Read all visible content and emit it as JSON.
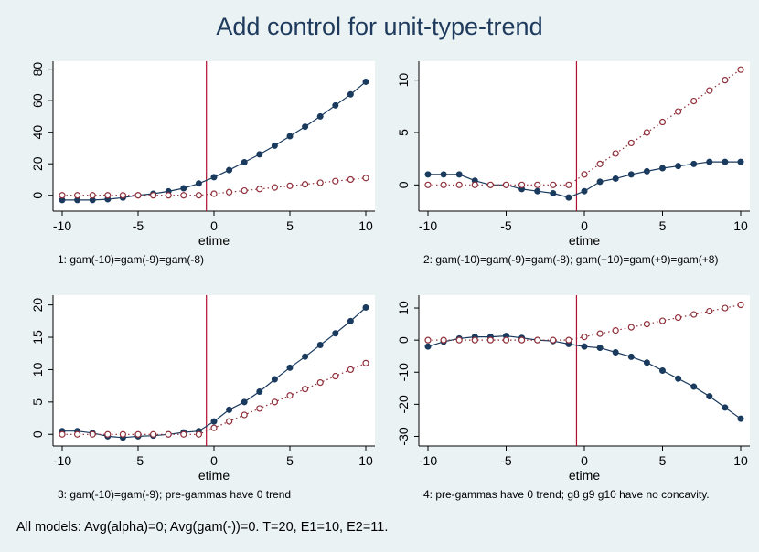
{
  "title": "Add control for unit-type-trend",
  "footnote": "All models: Avg(alpha)=0; Avg(gam(-))=0.  T=20, E1=10, E2=11.",
  "colors": {
    "background": "#eaf2f3",
    "plot_bg": "#ffffff",
    "solid_series": "#1a3a5e",
    "dotted_series": "#8f2f3a",
    "event_line": "#b01030",
    "title": "#1e3a5c"
  },
  "chart_data": [
    {
      "type": "line",
      "caption": "1: gam(-10)=gam(-9)=gam(-8)",
      "xlabel": "etime",
      "ylabel": "",
      "xlim": [
        -10,
        10
      ],
      "ylim": [
        -10,
        85
      ],
      "x_ticks": [
        -10,
        -5,
        0,
        5,
        10
      ],
      "y_ticks": [
        0,
        20,
        40,
        60,
        80
      ],
      "grid": false,
      "legend": "none",
      "vline_x": -0.5,
      "x": [
        -10,
        -9,
        -8,
        -7,
        -6,
        -5,
        -4,
        -3,
        -2,
        -1,
        0,
        1,
        2,
        3,
        4,
        5,
        6,
        7,
        8,
        9,
        10
      ],
      "series": [
        {
          "style": "solid-filled",
          "values": [
            -3,
            -3,
            -3,
            -2.5,
            -1.5,
            0,
            1,
            2.5,
            4.5,
            7.5,
            11.5,
            16,
            21,
            26,
            31.5,
            37.5,
            43.5,
            50,
            57,
            64,
            72
          ]
        },
        {
          "style": "dotted-hollow",
          "values": [
            0,
            0,
            0,
            0,
            0,
            0,
            0,
            0,
            0,
            0,
            1,
            2,
            3,
            4,
            5,
            6,
            7,
            8,
            9,
            10,
            11
          ]
        }
      ]
    },
    {
      "type": "line",
      "caption": "2: gam(-10)=gam(-9)=gam(-8); gam(+10)=gam(+9)=gam(+8)",
      "xlabel": "etime",
      "ylabel": "",
      "xlim": [
        -10,
        10
      ],
      "ylim": [
        -2.5,
        11.8
      ],
      "x_ticks": [
        -10,
        -5,
        0,
        5,
        10
      ],
      "y_ticks": [
        0,
        5,
        10
      ],
      "grid": false,
      "legend": "none",
      "vline_x": -0.5,
      "x": [
        -10,
        -9,
        -8,
        -7,
        -6,
        -5,
        -4,
        -3,
        -2,
        -1,
        0,
        1,
        2,
        3,
        4,
        5,
        6,
        7,
        8,
        9,
        10
      ],
      "series": [
        {
          "style": "solid-filled",
          "values": [
            1,
            1,
            1,
            0.4,
            0,
            0,
            -0.4,
            -0.6,
            -0.8,
            -1.2,
            -0.6,
            0.3,
            0.6,
            1,
            1.3,
            1.6,
            1.8,
            2,
            2.2,
            2.2,
            2.2
          ]
        },
        {
          "style": "dotted-hollow",
          "values": [
            0,
            0,
            0,
            0,
            0,
            0,
            0,
            0,
            0,
            0,
            1,
            2,
            3,
            4,
            5,
            6,
            7,
            8,
            9,
            10,
            11
          ]
        }
      ]
    },
    {
      "type": "line",
      "caption": "3: gam(-10)=gam(-9); pre-gammas have 0 trend",
      "xlabel": "etime",
      "ylabel": "",
      "xlim": [
        -10,
        10
      ],
      "ylim": [
        -1.8,
        21.5
      ],
      "x_ticks": [
        -10,
        -5,
        0,
        5,
        10
      ],
      "y_ticks": [
        0,
        5,
        10,
        15,
        20
      ],
      "grid": false,
      "legend": "none",
      "vline_x": -0.5,
      "x": [
        -10,
        -9,
        -8,
        -7,
        -6,
        -5,
        -4,
        -3,
        -2,
        -1,
        0,
        1,
        2,
        3,
        4,
        5,
        6,
        7,
        8,
        9,
        10
      ],
      "series": [
        {
          "style": "solid-filled",
          "values": [
            0.5,
            0.5,
            0.2,
            -0.3,
            -0.5,
            -0.3,
            -0.2,
            0,
            0.3,
            0.5,
            2,
            3.8,
            5,
            6.6,
            8.5,
            10.3,
            12,
            13.8,
            15.6,
            17.5,
            19.6
          ]
        },
        {
          "style": "dotted-hollow",
          "values": [
            0,
            0,
            0,
            0,
            0,
            0,
            0,
            0,
            0,
            0,
            1,
            2,
            3,
            4,
            5,
            6,
            7,
            8,
            9,
            10,
            11
          ]
        }
      ]
    },
    {
      "type": "line",
      "caption": "4: pre-gammas have 0 trend; g8 g9 g10 have no concavity.",
      "xlabel": "etime",
      "ylabel": "",
      "xlim": [
        -10,
        10
      ],
      "ylim": [
        -33,
        14
      ],
      "x_ticks": [
        -10,
        -5,
        0,
        5,
        10
      ],
      "y_ticks": [
        -30,
        -20,
        -10,
        0,
        10
      ],
      "grid": false,
      "legend": "none",
      "vline_x": -0.5,
      "x": [
        -10,
        -9,
        -8,
        -7,
        -6,
        -5,
        -4,
        -3,
        -2,
        -1,
        0,
        1,
        2,
        3,
        4,
        5,
        6,
        7,
        8,
        9,
        10
      ],
      "series": [
        {
          "style": "solid-filled",
          "values": [
            -2,
            -0.5,
            0.5,
            1,
            1,
            1.3,
            0.7,
            0,
            -0.3,
            -1.2,
            -2,
            -2.4,
            -3.8,
            -5.2,
            -7,
            -9.5,
            -12,
            -14.5,
            -17.5,
            -21,
            -24.5
          ]
        },
        {
          "style": "dotted-hollow",
          "values": [
            0,
            0,
            0,
            0,
            0,
            0,
            0,
            0,
            0,
            0,
            1,
            2,
            3,
            4,
            5,
            6,
            7,
            8,
            9,
            10,
            11
          ]
        }
      ]
    }
  ]
}
